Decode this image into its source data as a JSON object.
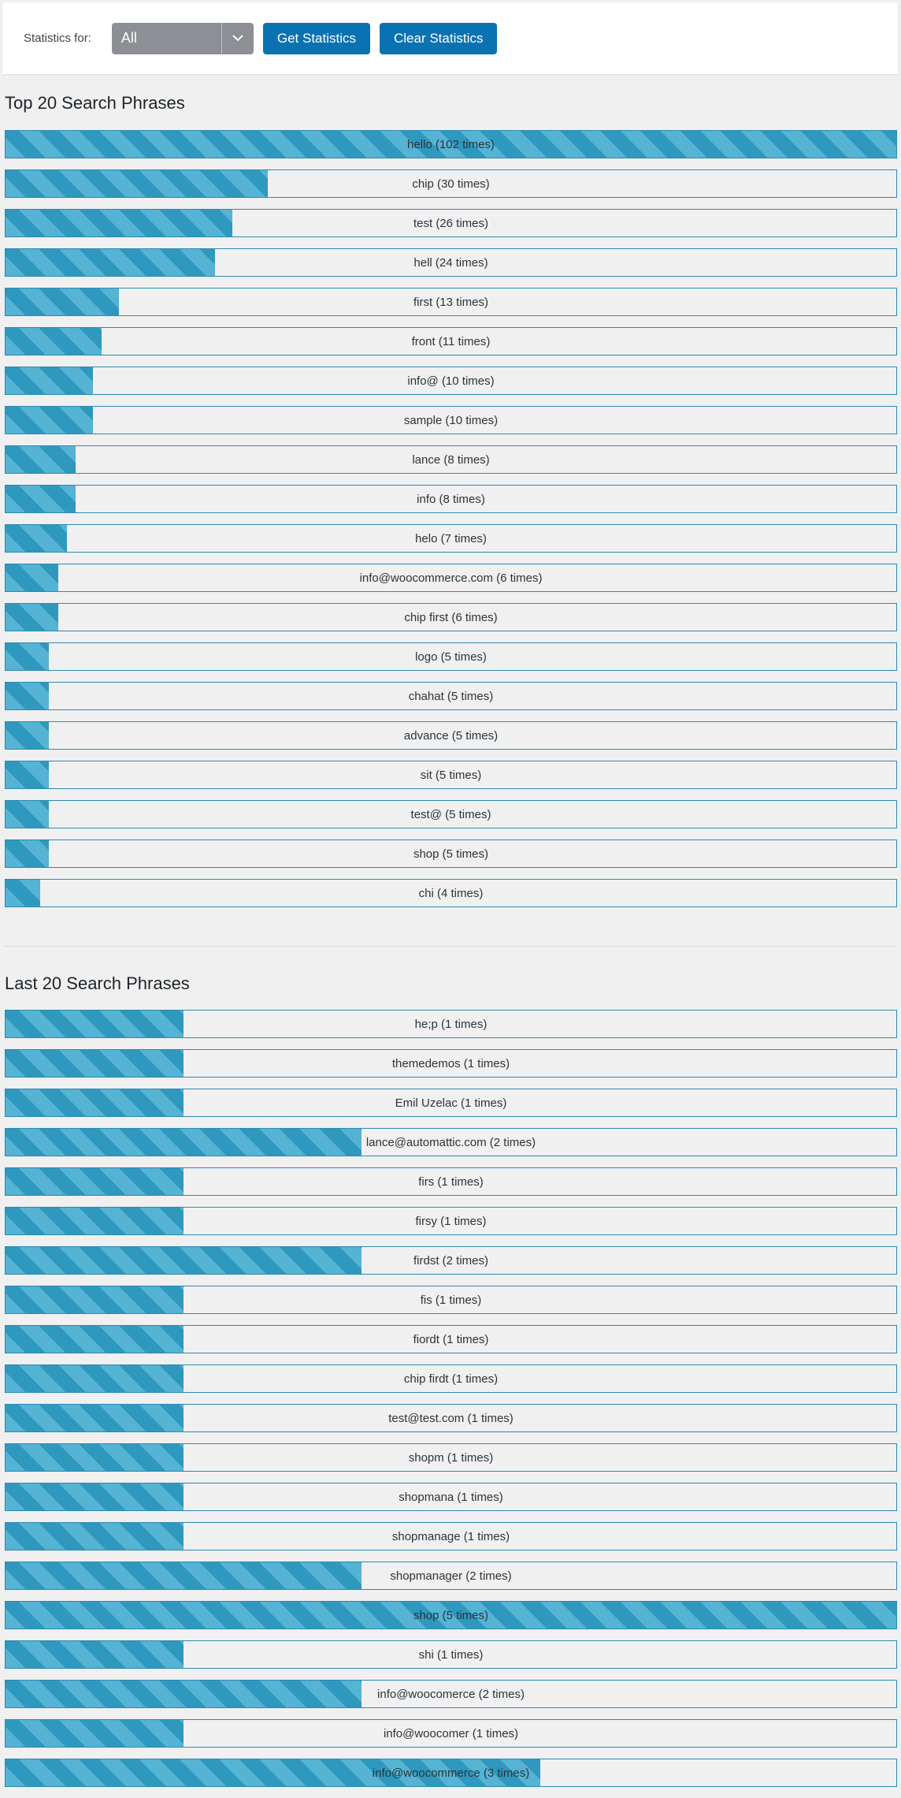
{
  "toolbar": {
    "statistics_for_label": "Statistics for:",
    "select_value": "All",
    "get_label": "Get Statistics",
    "clear_label": "Clear Statistics"
  },
  "colors": {
    "bar_fill": "#3ba3c7",
    "bar_border": "#2e89b0",
    "button": "#0b72b1"
  },
  "top": {
    "title": "Top 20 Search Phrases",
    "items": [
      {
        "phrase": "hello (102 times)",
        "count": 102
      },
      {
        "phrase": "chip (30 times)",
        "count": 30
      },
      {
        "phrase": "test (26 times)",
        "count": 26
      },
      {
        "phrase": "hell (24 times)",
        "count": 24
      },
      {
        "phrase": "first (13 times)",
        "count": 13
      },
      {
        "phrase": "front (11 times)",
        "count": 11
      },
      {
        "phrase": "info@ (10 times)",
        "count": 10
      },
      {
        "phrase": "sample (10 times)",
        "count": 10
      },
      {
        "phrase": "lance (8 times)",
        "count": 8
      },
      {
        "phrase": "info (8 times)",
        "count": 8
      },
      {
        "phrase": "helo (7 times)",
        "count": 7
      },
      {
        "phrase": "info@woocommerce.com (6 times)",
        "count": 6
      },
      {
        "phrase": "chip first (6 times)",
        "count": 6
      },
      {
        "phrase": "logo (5 times)",
        "count": 5
      },
      {
        "phrase": "chahat (5 times)",
        "count": 5
      },
      {
        "phrase": "advance (5 times)",
        "count": 5
      },
      {
        "phrase": "sit (5 times)",
        "count": 5
      },
      {
        "phrase": "test@ (5 times)",
        "count": 5
      },
      {
        "phrase": "shop (5 times)",
        "count": 5
      },
      {
        "phrase": "chi (4 times)",
        "count": 4
      }
    ]
  },
  "last": {
    "title": "Last 20 Search Phrases",
    "items": [
      {
        "phrase": "he;p (1 times)",
        "count": 1
      },
      {
        "phrase": "themedemos (1 times)",
        "count": 1
      },
      {
        "phrase": "Emil Uzelac (1 times)",
        "count": 1
      },
      {
        "phrase": "lance@automattic.com (2 times)",
        "count": 2
      },
      {
        "phrase": "firs (1 times)",
        "count": 1
      },
      {
        "phrase": "firsy (1 times)",
        "count": 1
      },
      {
        "phrase": "firdst (2 times)",
        "count": 2
      },
      {
        "phrase": "fis (1 times)",
        "count": 1
      },
      {
        "phrase": "fiordt (1 times)",
        "count": 1
      },
      {
        "phrase": "chip firdt (1 times)",
        "count": 1
      },
      {
        "phrase": "test@test.com (1 times)",
        "count": 1
      },
      {
        "phrase": "shopm (1 times)",
        "count": 1
      },
      {
        "phrase": "shopmana (1 times)",
        "count": 1
      },
      {
        "phrase": "shopmanage (1 times)",
        "count": 1
      },
      {
        "phrase": "shopmanager (2 times)",
        "count": 2
      },
      {
        "phrase": "shop (5 times)",
        "count": 5
      },
      {
        "phrase": "shi (1 times)",
        "count": 1
      },
      {
        "phrase": "info@woocomerce (2 times)",
        "count": 2
      },
      {
        "phrase": "info@woocomer (1 times)",
        "count": 1
      },
      {
        "phrase": "info@woocommerce (3 times)",
        "count": 3
      }
    ]
  }
}
